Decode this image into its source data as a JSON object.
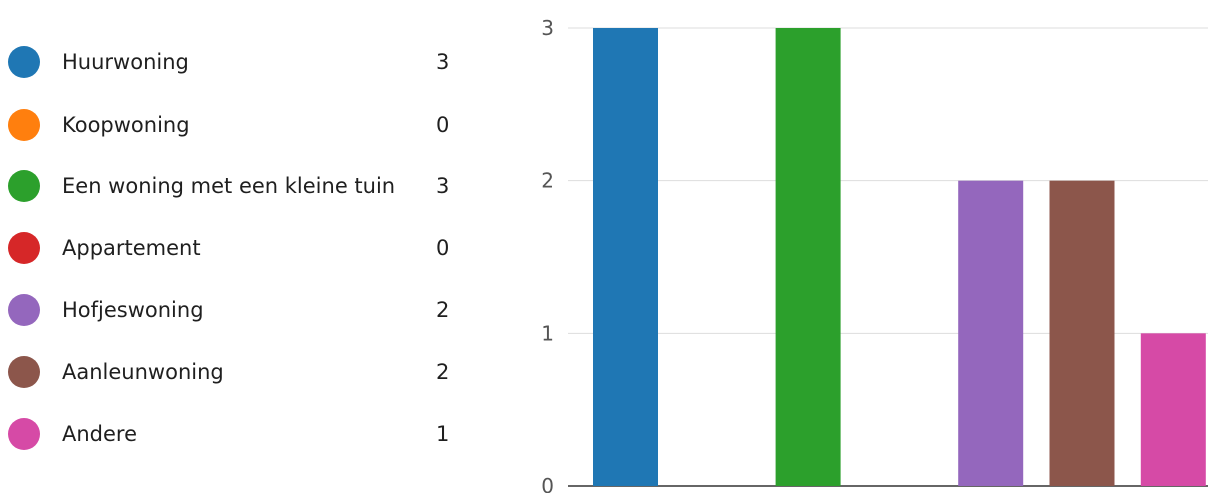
{
  "chart_data": {
    "type": "bar",
    "categories": [
      "Huurwoning",
      "Koopwoning",
      "Een woning met een kleine tuin",
      "Appartement",
      "Hofjeswoning",
      "Aanleunwoning",
      "Andere"
    ],
    "values": [
      3,
      0,
      3,
      0,
      2,
      2,
      1
    ],
    "colors": [
      "#1f77b4",
      "#ff7f0e",
      "#2ca02c",
      "#d62728",
      "#9467bd",
      "#8c564b",
      "#d64aa6"
    ],
    "ylim": [
      0,
      3
    ],
    "yticks": [
      "0",
      "1",
      "2",
      "3"
    ],
    "grid": true,
    "legend_placement": "left",
    "title": "",
    "xlabel": "",
    "ylabel": ""
  }
}
